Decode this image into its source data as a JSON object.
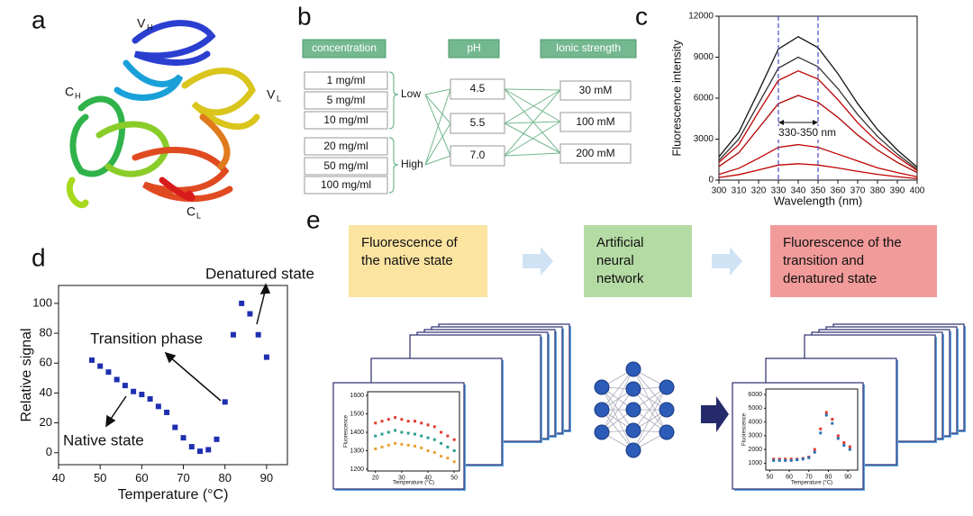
{
  "panel_labels": [
    "a",
    "b",
    "c",
    "d",
    "e"
  ],
  "protein_labels": [
    {
      "text": "V",
      "sub": "H"
    },
    {
      "text": "C",
      "sub": "H"
    },
    {
      "text": "V",
      "sub": "L"
    },
    {
      "text": "C",
      "sub": "L"
    }
  ],
  "design": {
    "headers": [
      "concentration",
      "pH",
      "Ionic strength"
    ],
    "concentrations": [
      "1 mg/ml",
      "5 mg/ml",
      "10 mg/ml",
      "20 mg/ml",
      "50 mg/ml",
      "100 mg/ml"
    ],
    "groups": [
      "Low",
      "High"
    ],
    "ph": [
      "4.5",
      "5.5",
      "7.0"
    ],
    "ionic_strength": [
      "30 mM",
      "100 mM",
      "200 mM"
    ]
  },
  "workflow": [
    [
      "Fluorescence of",
      "the native state"
    ],
    [
      "Artificial",
      "neural",
      "network"
    ],
    [
      "Fluorescence of the",
      "transition and",
      "denatured state"
    ]
  ],
  "chart_data": [
    {
      "type": "line",
      "xlabel": "Wavelength (nm)",
      "ylabel": "Fluorescence intensity",
      "x": [
        300,
        310,
        320,
        330,
        340,
        350,
        360,
        370,
        380,
        390,
        400
      ],
      "xlim": [
        300,
        400
      ],
      "xticks": [
        300,
        310,
        320,
        330,
        340,
        350,
        360,
        370,
        380,
        390,
        400
      ],
      "ylim": [
        0,
        12000
      ],
      "yticks": [
        0,
        3000,
        6000,
        9000,
        12000
      ],
      "vlines": [
        330,
        350
      ],
      "annotation": "330-350 nm",
      "series": [
        {
          "color": "#111111",
          "values": [
            1700,
            3500,
            6500,
            9600,
            10500,
            9700,
            7800,
            5600,
            3700,
            2200,
            950
          ]
        },
        {
          "color": "#333333",
          "values": [
            1450,
            3000,
            5600,
            8200,
            9000,
            8300,
            6700,
            4800,
            3200,
            1900,
            800
          ]
        },
        {
          "color": "#c00000",
          "values": [
            1300,
            2600,
            5000,
            7300,
            8000,
            7400,
            5900,
            4200,
            2800,
            1700,
            700
          ]
        },
        {
          "color": "#b00000",
          "values": [
            1000,
            2000,
            3800,
            5600,
            6200,
            5700,
            4600,
            3300,
            2200,
            1300,
            550
          ]
        },
        {
          "color": "#c00000",
          "values": [
            420,
            860,
            1600,
            2400,
            2600,
            2400,
            1900,
            1400,
            900,
            550,
            240
          ]
        },
        {
          "color": "#c00000",
          "values": [
            190,
            400,
            740,
            1100,
            1200,
            1100,
            890,
            640,
            420,
            250,
            110
          ]
        }
      ]
    },
    {
      "type": "scatter",
      "xlabel": "Temperature (°C)",
      "ylabel": "Relative signal",
      "x": [
        48,
        50,
        52,
        54,
        56,
        58,
        60,
        62,
        64,
        66,
        68,
        70,
        72,
        74,
        76,
        78,
        80,
        82,
        84,
        86,
        88,
        90
      ],
      "xlim": [
        40,
        95
      ],
      "xticks": [
        40,
        50,
        60,
        70,
        80,
        90
      ],
      "ylim": [
        -8,
        112
      ],
      "yticks": [
        0,
        20,
        40,
        60,
        80,
        100
      ],
      "annotations": [
        "Denatured state",
        "Transition phase",
        "Native state"
      ],
      "series": [
        {
          "color": "#1f2fb0",
          "values": [
            62,
            58,
            54,
            49,
            45,
            41,
            39,
            36,
            31,
            27,
            17,
            10,
            4,
            1,
            2,
            9,
            34,
            79,
            100,
            93,
            79,
            64
          ]
        }
      ]
    },
    {
      "type": "scatter",
      "xlabel": "Temperature (°C)",
      "ylabel": "Fluorescence",
      "x": [
        20,
        22.5,
        25,
        27.5,
        30,
        32.5,
        35,
        37.5,
        40,
        42.5,
        45,
        47.5,
        50
      ],
      "xlim": [
        17,
        52
      ],
      "xticks": [
        20,
        30,
        40,
        50
      ],
      "ylim": [
        1190,
        1620
      ],
      "yticks": [
        1200,
        1300,
        1400,
        1500,
        1600
      ],
      "series": [
        {
          "color": "#e03c31",
          "values": [
            1450,
            1460,
            1470,
            1480,
            1470,
            1460,
            1460,
            1450,
            1440,
            1430,
            1400,
            1380,
            1360
          ]
        },
        {
          "color": "#2a9d8f",
          "values": [
            1380,
            1390,
            1400,
            1410,
            1400,
            1395,
            1390,
            1380,
            1370,
            1360,
            1340,
            1320,
            1300
          ]
        },
        {
          "color": "#e9a030",
          "values": [
            1310,
            1320,
            1330,
            1340,
            1335,
            1330,
            1325,
            1315,
            1300,
            1290,
            1270,
            1260,
            1240
          ]
        }
      ]
    },
    {
      "type": "scatter",
      "xlabel": "Temperature (°C)",
      "ylabel": "Fluorescence",
      "x": [
        52,
        55,
        58,
        61,
        64,
        67,
        70,
        73,
        76,
        79,
        82,
        85,
        88,
        91
      ],
      "xlim": [
        48,
        95
      ],
      "xticks": [
        50,
        60,
        70,
        80,
        90
      ],
      "ylim": [
        500,
        6400
      ],
      "yticks": [
        1000,
        2000,
        3000,
        4000,
        5000,
        6000
      ],
      "series": [
        {
          "color": "#e03c31",
          "values": [
            1300,
            1300,
            1300,
            1300,
            1300,
            1350,
            1450,
            2000,
            3500,
            4700,
            4200,
            3000,
            2500,
            2200
          ]
        },
        {
          "color": "#2a6fb0",
          "values": [
            1200,
            1200,
            1200,
            1200,
            1250,
            1300,
            1400,
            1800,
            3200,
            4500,
            3900,
            2800,
            2300,
            2000
          ]
        }
      ]
    }
  ]
}
